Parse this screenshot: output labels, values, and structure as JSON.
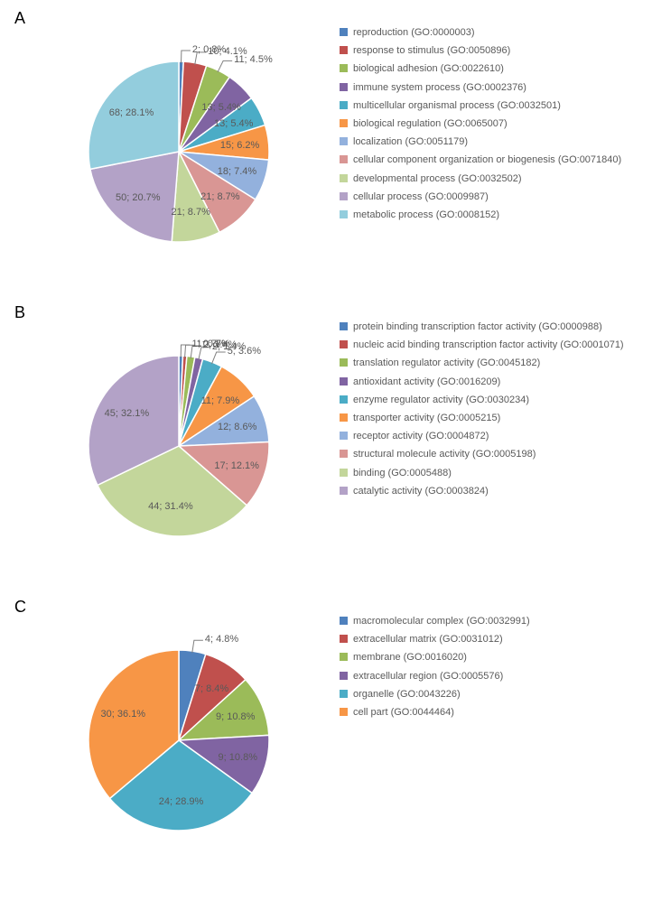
{
  "panels": [
    {
      "id": "A",
      "label": "A",
      "pie_radius": 100,
      "slices": [
        {
          "value": 2,
          "pct": "0.8%",
          "color": "#4f81bd",
          "label": "reproduction (GO:0000003)"
        },
        {
          "value": 10,
          "pct": "4.1%",
          "color": "#c0504d",
          "label": "response to stimulus (GO:0050896)"
        },
        {
          "value": 11,
          "pct": "4.5%",
          "color": "#9bbb59",
          "label": "biological adhesion (GO:0022610)"
        },
        {
          "value": 13,
          "pct": "5.4%",
          "color": "#8064a2",
          "label": "immune system process (GO:0002376)"
        },
        {
          "value": 13,
          "pct": "5.4%",
          "color": "#4bacc6",
          "label": "multicellular organismal process (GO:0032501)"
        },
        {
          "value": 15,
          "pct": "6.2%",
          "color": "#f79646",
          "label": "biological regulation (GO:0065007)"
        },
        {
          "value": 18,
          "pct": "7.4%",
          "color": "#93b1dd",
          "label": "localization (GO:0051179)"
        },
        {
          "value": 21,
          "pct": "8.7%",
          "color": "#d99694",
          "label": "cellular component organization or biogenesis (GO:0071840)"
        },
        {
          "value": 21,
          "pct": "8.7%",
          "color": "#c3d69b",
          "label": "developmental process (GO:0032502)"
        },
        {
          "value": 50,
          "pct": "20.7%",
          "color": "#b3a2c7",
          "label": "cellular process (GO:0009987)"
        },
        {
          "value": 68,
          "pct": "28.1%",
          "color": "#93cddd",
          "label": "metabolic process (GO:0008152)"
        }
      ]
    },
    {
      "id": "B",
      "label": "B",
      "pie_radius": 100,
      "slices": [
        {
          "value": 1,
          "pct": "0.7%",
          "color": "#4f81bd",
          "label": "protein binding transcription factor activity (GO:0000988)"
        },
        {
          "value": 1,
          "pct": "0.7%",
          "color": "#c0504d",
          "label": "nucleic acid binding transcription factor activity (GO:0001071)"
        },
        {
          "value": 2,
          "pct": "1.4%",
          "color": "#9bbb59",
          "label": "translation regulator activity (GO:0045182)"
        },
        {
          "value": 2,
          "pct": "1.4%",
          "color": "#8064a2",
          "label": "antioxidant activity (GO:0016209)"
        },
        {
          "value": 5,
          "pct": "3.6%",
          "color": "#4bacc6",
          "label": "enzyme regulator activity (GO:0030234)"
        },
        {
          "value": 11,
          "pct": "7.9%",
          "color": "#f79646",
          "label": "transporter activity (GO:0005215)"
        },
        {
          "value": 12,
          "pct": "8.6%",
          "color": "#93b1dd",
          "label": "receptor activity (GO:0004872)"
        },
        {
          "value": 17,
          "pct": "12.1%",
          "color": "#d99694",
          "label": "structural molecule activity (GO:0005198)"
        },
        {
          "value": 44,
          "pct": "31.4%",
          "color": "#c3d69b",
          "label": "binding (GO:0005488)"
        },
        {
          "value": 45,
          "pct": "32.1%",
          "color": "#b3a2c7",
          "label": "catalytic activity (GO:0003824)"
        }
      ]
    },
    {
      "id": "C",
      "label": "C",
      "pie_radius": 100,
      "slices": [
        {
          "value": 4,
          "pct": "4.8%",
          "color": "#4f81bd",
          "label": "macromolecular complex (GO:0032991)"
        },
        {
          "value": 7,
          "pct": "8.4%",
          "color": "#c0504d",
          "label": "extracellular matrix (GO:0031012)"
        },
        {
          "value": 9,
          "pct": "10.8%",
          "color": "#9bbb59",
          "label": "membrane (GO:0016020)"
        },
        {
          "value": 9,
          "pct": "10.8%",
          "color": "#8064a2",
          "label": "extracellular region (GO:0005576)"
        },
        {
          "value": 24,
          "pct": "28.9%",
          "color": "#4bacc6",
          "label": "organelle (GO:0043226)"
        },
        {
          "value": 30,
          "pct": "36.1%",
          "color": "#f79646",
          "label": "cell part (GO:0044464)"
        }
      ]
    }
  ],
  "style": {
    "slice_stroke": "#ffffff",
    "slice_stroke_width": 1.5,
    "label_color": "#595959",
    "label_fontsize": 11,
    "legend_spacing": 7,
    "panel_label_fontsize": 18
  }
}
